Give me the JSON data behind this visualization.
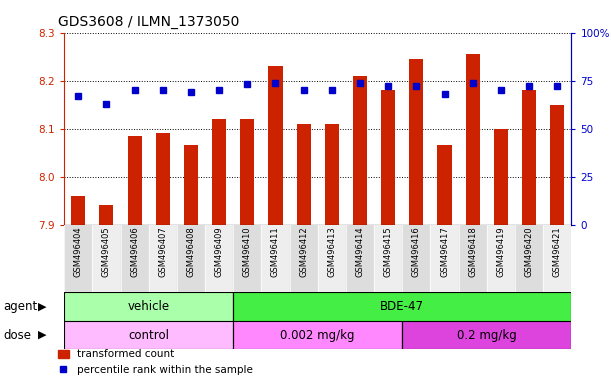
{
  "title": "GDS3608 / ILMN_1373050",
  "samples": [
    "GSM496404",
    "GSM496405",
    "GSM496406",
    "GSM496407",
    "GSM496408",
    "GSM496409",
    "GSM496410",
    "GSM496411",
    "GSM496412",
    "GSM496413",
    "GSM496414",
    "GSM496415",
    "GSM496416",
    "GSM496417",
    "GSM496418",
    "GSM496419",
    "GSM496420",
    "GSM496421"
  ],
  "transformed_count": [
    7.96,
    7.94,
    8.085,
    8.09,
    8.065,
    8.12,
    8.12,
    8.23,
    8.11,
    8.11,
    8.21,
    8.18,
    8.245,
    8.065,
    8.255,
    8.1,
    8.18,
    8.15
  ],
  "percentile_rank": [
    67,
    63,
    70,
    70,
    69,
    70,
    73,
    74,
    70,
    70,
    74,
    72,
    72,
    68,
    74,
    70,
    72,
    72
  ],
  "ylim_left": [
    7.9,
    8.3
  ],
  "ylim_right": [
    0,
    100
  ],
  "yticks_left": [
    7.9,
    8.0,
    8.1,
    8.2,
    8.3
  ],
  "yticks_right": [
    0,
    25,
    50,
    75,
    100
  ],
  "ytick_labels_right": [
    "0",
    "25",
    "50",
    "75",
    "100%"
  ],
  "bar_color": "#cc2200",
  "dot_color": "#0000cc",
  "bar_bottom": 7.9,
  "agent_groups": [
    {
      "label": "vehicle",
      "start": 0,
      "end": 6,
      "color": "#aaffaa"
    },
    {
      "label": "BDE-47",
      "start": 6,
      "end": 18,
      "color": "#44ee44"
    }
  ],
  "dose_groups": [
    {
      "label": "control",
      "start": 0,
      "end": 6,
      "color": "#ffbbff"
    },
    {
      "label": "0.002 mg/kg",
      "start": 6,
      "end": 12,
      "color": "#ff88ff"
    },
    {
      "label": "0.2 mg/kg",
      "start": 12,
      "end": 18,
      "color": "#dd44dd"
    }
  ],
  "legend_bar_label": "transformed count",
  "legend_dot_label": "percentile rank within the sample",
  "xlabel_agent": "agent",
  "xlabel_dose": "dose",
  "bg_color": "#ffffff",
  "plot_bg": "#ffffff",
  "tick_color_left": "#cc2200",
  "tick_color_right": "#0000cc",
  "title_fontsize": 10,
  "tick_fontsize": 7.5,
  "label_fontsize": 8.5,
  "xtick_bg_even": "#dddddd",
  "xtick_bg_odd": "#eeeeee"
}
